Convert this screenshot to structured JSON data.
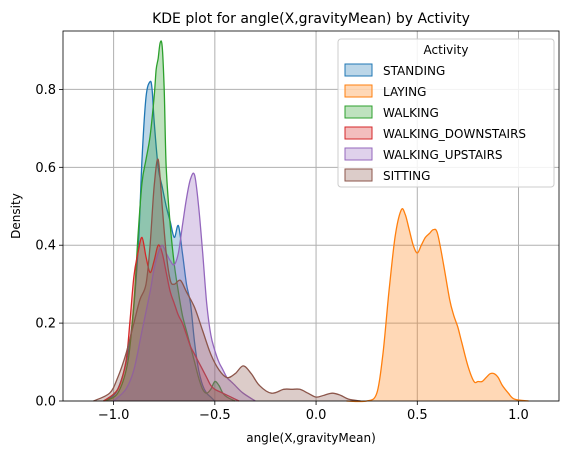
{
  "chart_data": {
    "type": "area",
    "title": "KDE plot for angle(X,gravityMean) by Activity",
    "xlabel": "angle(X,gravityMean)",
    "ylabel": "Density",
    "xlim": [
      -1.25,
      1.2
    ],
    "ylim": [
      0,
      0.95
    ],
    "xticks": [
      -1.0,
      -0.5,
      0.0,
      0.5,
      1.0
    ],
    "xtick_labels": [
      "−1.0",
      "−0.5",
      "0.0",
      "0.5",
      "1.0"
    ],
    "yticks": [
      0.0,
      0.2,
      0.4,
      0.6,
      0.8
    ],
    "ytick_labels": [
      "0.0",
      "0.2",
      "0.4",
      "0.6",
      "0.8"
    ],
    "grid": true,
    "legend": {
      "title": "Activity",
      "position": "upper-right"
    },
    "series": [
      {
        "name": "STANDING",
        "color": "#1f77b4",
        "x": [
          -1.05,
          -0.98,
          -0.92,
          -0.88,
          -0.86,
          -0.84,
          -0.82,
          -0.81,
          -0.8,
          -0.78,
          -0.76,
          -0.74,
          -0.72,
          -0.7,
          -0.68,
          -0.66,
          -0.64,
          -0.62,
          -0.6,
          -0.58,
          -0.56,
          -0.54,
          -0.52,
          -0.5
        ],
        "y": [
          0.0,
          0.03,
          0.15,
          0.38,
          0.62,
          0.78,
          0.82,
          0.8,
          0.72,
          0.6,
          0.55,
          0.5,
          0.46,
          0.42,
          0.45,
          0.38,
          0.3,
          0.25,
          0.15,
          0.08,
          0.04,
          0.02,
          0.01,
          0.0
        ]
      },
      {
        "name": "LAYING",
        "color": "#ff7f0e",
        "x": [
          0.15,
          0.25,
          0.3,
          0.33,
          0.36,
          0.39,
          0.42,
          0.44,
          0.46,
          0.48,
          0.5,
          0.52,
          0.54,
          0.56,
          0.58,
          0.6,
          0.63,
          0.66,
          0.68,
          0.7,
          0.72,
          0.75,
          0.78,
          0.8,
          0.82,
          0.84,
          0.86,
          0.88,
          0.9,
          0.92,
          0.95,
          0.98,
          1.05
        ],
        "y": [
          0.0,
          0.0,
          0.02,
          0.12,
          0.28,
          0.42,
          0.49,
          0.48,
          0.44,
          0.4,
          0.38,
          0.4,
          0.42,
          0.43,
          0.44,
          0.43,
          0.35,
          0.26,
          0.22,
          0.19,
          0.15,
          0.09,
          0.05,
          0.05,
          0.05,
          0.06,
          0.07,
          0.07,
          0.06,
          0.04,
          0.02,
          0.005,
          0.0
        ]
      },
      {
        "name": "WALKING",
        "color": "#2ca02c",
        "x": [
          -1.05,
          -0.98,
          -0.93,
          -0.9,
          -0.88,
          -0.86,
          -0.84,
          -0.82,
          -0.8,
          -0.79,
          -0.78,
          -0.77,
          -0.76,
          -0.75,
          -0.74,
          -0.72,
          -0.7,
          -0.68,
          -0.66,
          -0.64,
          -0.62,
          -0.6,
          -0.58,
          -0.56,
          -0.54,
          -0.52,
          -0.5,
          -0.48,
          -0.46,
          -0.44,
          -0.4
        ],
        "y": [
          0.0,
          0.02,
          0.1,
          0.25,
          0.42,
          0.56,
          0.62,
          0.68,
          0.78,
          0.85,
          0.88,
          0.92,
          0.91,
          0.8,
          0.6,
          0.45,
          0.35,
          0.28,
          0.22,
          0.18,
          0.14,
          0.1,
          0.06,
          0.03,
          0.02,
          0.03,
          0.05,
          0.04,
          0.02,
          0.01,
          0.0
        ]
      },
      {
        "name": "WALKING_DOWNSTAIRS",
        "color": "#d62728",
        "x": [
          -1.05,
          -0.98,
          -0.94,
          -0.92,
          -0.9,
          -0.88,
          -0.86,
          -0.84,
          -0.82,
          -0.8,
          -0.78,
          -0.76,
          -0.74,
          -0.72,
          -0.7,
          -0.68,
          -0.66,
          -0.64,
          -0.62,
          -0.6,
          -0.58,
          -0.56,
          -0.54,
          -0.52,
          -0.5,
          -0.46,
          -0.42,
          -0.38
        ],
        "y": [
          0.0,
          0.03,
          0.1,
          0.2,
          0.32,
          0.38,
          0.42,
          0.37,
          0.33,
          0.36,
          0.4,
          0.38,
          0.33,
          0.28,
          0.25,
          0.22,
          0.2,
          0.17,
          0.14,
          0.12,
          0.1,
          0.08,
          0.06,
          0.04,
          0.03,
          0.02,
          0.01,
          0.0
        ]
      },
      {
        "name": "WALKING_UPSTAIRS",
        "color": "#9467bd",
        "x": [
          -1.0,
          -0.94,
          -0.9,
          -0.86,
          -0.82,
          -0.8,
          -0.78,
          -0.76,
          -0.74,
          -0.72,
          -0.7,
          -0.68,
          -0.66,
          -0.64,
          -0.62,
          -0.6,
          -0.58,
          -0.56,
          -0.54,
          -0.52,
          -0.5,
          -0.48,
          -0.46,
          -0.44,
          -0.42,
          -0.4,
          -0.36,
          -0.3
        ],
        "y": [
          0.0,
          0.03,
          0.08,
          0.18,
          0.28,
          0.34,
          0.38,
          0.4,
          0.38,
          0.36,
          0.35,
          0.38,
          0.45,
          0.52,
          0.57,
          0.58,
          0.5,
          0.38,
          0.25,
          0.17,
          0.13,
          0.1,
          0.08,
          0.06,
          0.05,
          0.04,
          0.02,
          0.0
        ]
      },
      {
        "name": "SITTING",
        "color": "#8c564b",
        "x": [
          -1.1,
          -1.02,
          -0.98,
          -0.94,
          -0.9,
          -0.87,
          -0.84,
          -0.82,
          -0.8,
          -0.78,
          -0.76,
          -0.74,
          -0.72,
          -0.7,
          -0.67,
          -0.64,
          -0.6,
          -0.56,
          -0.52,
          -0.48,
          -0.44,
          -0.4,
          -0.36,
          -0.32,
          -0.28,
          -0.22,
          -0.16,
          -0.12,
          -0.08,
          -0.04,
          0.0,
          0.04,
          0.08,
          0.12,
          0.16,
          0.22
        ],
        "y": [
          0.0,
          0.02,
          0.06,
          0.12,
          0.2,
          0.26,
          0.3,
          0.4,
          0.55,
          0.62,
          0.5,
          0.38,
          0.31,
          0.3,
          0.31,
          0.28,
          0.24,
          0.18,
          0.12,
          0.08,
          0.06,
          0.07,
          0.09,
          0.07,
          0.04,
          0.02,
          0.03,
          0.03,
          0.03,
          0.02,
          0.01,
          0.015,
          0.02,
          0.015,
          0.005,
          0.0
        ]
      }
    ]
  }
}
